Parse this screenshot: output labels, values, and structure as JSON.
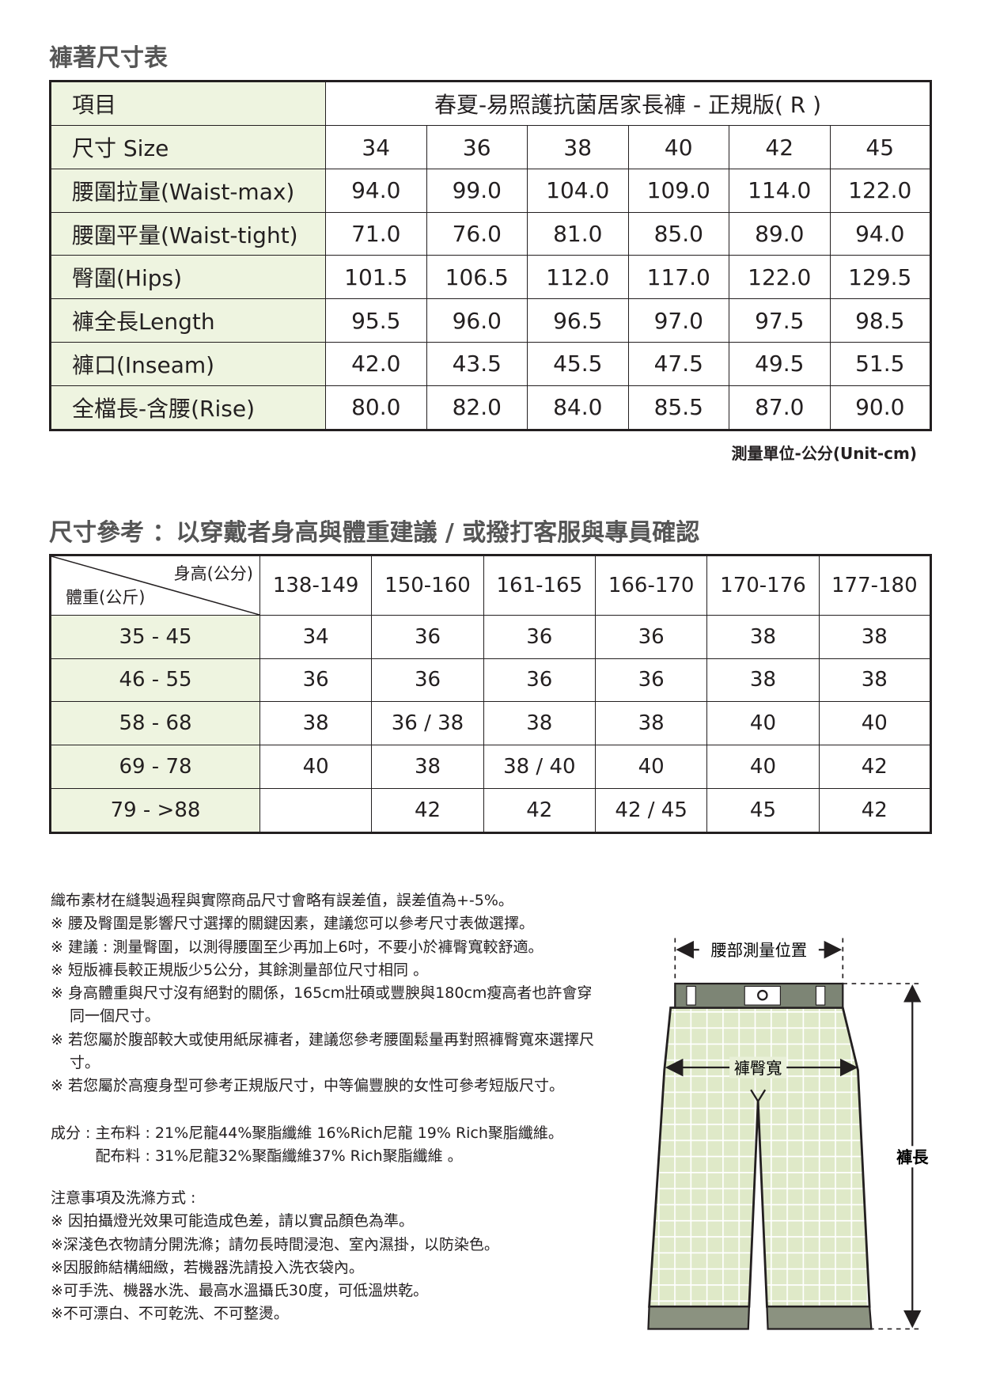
{
  "size_table": {
    "title": "褲著尺寸表",
    "header_label": "項目",
    "product": "春夏-易照護抗菌居家長褲 - 正規版( R )",
    "rows": [
      [
        "尺寸 Size",
        "34",
        "36",
        "38",
        "40",
        "42",
        "45"
      ],
      [
        "腰圍拉量(Waist-max)",
        "94.0",
        "99.0",
        "104.0",
        "109.0",
        "114.0",
        "122.0"
      ],
      [
        "腰圍平量(Waist-tight)",
        "71.0",
        "76.0",
        "81.0",
        "85.0",
        "89.0",
        "94.0"
      ],
      [
        "臀圍(Hips)",
        "101.5",
        "106.5",
        "112.0",
        "117.0",
        "122.0",
        "129.5"
      ],
      [
        "褲全長Length",
        "95.5",
        "96.0",
        "96.5",
        "97.0",
        "97.5",
        "98.5"
      ],
      [
        "褲口(Inseam)",
        "42.0",
        "43.5",
        "45.5",
        "47.5",
        "49.5",
        "51.5"
      ],
      [
        "全檔長-含腰(Rise)",
        "80.0",
        "82.0",
        "84.0",
        "85.5",
        "87.0",
        "90.0"
      ]
    ],
    "unit_note": "測量單位-公分(Unit-cm)"
  },
  "ref_table": {
    "title": "尺寸參考 ：以穿戴者身高與體重建議 / 或撥打客服與專員確認",
    "corner_top": "身高(公分)",
    "corner_bottom": "體重(公斤)",
    "columns": [
      "138-149",
      "150-160",
      "161-165",
      "166-170",
      "170-176",
      "177-180"
    ],
    "rows": [
      [
        "35 - 45",
        "34",
        "36",
        "36",
        "36",
        "38",
        "38"
      ],
      [
        "46 - 55",
        "36",
        "36",
        "36",
        "36",
        "38",
        "38"
      ],
      [
        "58 - 68",
        "38",
        "36 / 38",
        "38",
        "38",
        "40",
        "40"
      ],
      [
        "69 - 78",
        "40",
        "38",
        "38 / 40",
        "40",
        "40",
        "42"
      ],
      [
        "79 - >88",
        null,
        "42",
        "42",
        "42 / 45",
        "45",
        "42"
      ]
    ]
  },
  "notes": [
    "織布素材在縫製過程與實際商品尺寸會略有誤差值，誤差值為+-5%。",
    "※ 腰及臀圍是影響尺寸選擇的關鍵因素，建議您可以參考尺寸表做選擇。",
    "※ 建議 : 測量臀圍，以測得腰圍至少再加上6吋，不要小於褲臀寬較舒適。",
    "※ 短版褲長較正規版少5公分，其餘測量部位尺寸相同 。",
    "※ 身高體重與尺寸沒有絕對的關係，165cm壯碩或豐腴與180cm瘦高者也許會穿同一個尺寸。",
    "※ 若您屬於腹部較大或使用紙尿褲者，建議您參考腰圍鬆量再對照褲臀寬來選擇尺寸。",
    "※ 若您屬於高瘦身型可參考正規版尺寸，中等偏豐腴的女性可參考短版尺寸。"
  ],
  "materials": {
    "label": "成分 :",
    "lines": [
      "主布料 : 21%尼龍44%聚脂纖維 16%Rich尼龍 19% Rich聚脂纖維。",
      "配布料 : 31%尼龍32%聚酯纖維37% Rich聚脂纖維 。"
    ]
  },
  "care": {
    "title": "注意事項及洗滌方式 :",
    "items": [
      "※ 因拍攝燈光效果可能造成色差，請以實品顏色為準。",
      "※深淺色衣物請分開洗滌；請勿長時間浸泡、室內濕掛，以防染色。",
      "※因服飾結構細緻，若機器洗請投入洗衣袋內。",
      "※可手洗、機器水洗、最高水溫攝氏30度，可低溫烘乾。",
      "※不可漂白、不可乾洗、不可整燙。"
    ]
  },
  "diagram": {
    "waist": "腰部測量位置",
    "hip": "褲臀寬",
    "length": "褲長"
  }
}
